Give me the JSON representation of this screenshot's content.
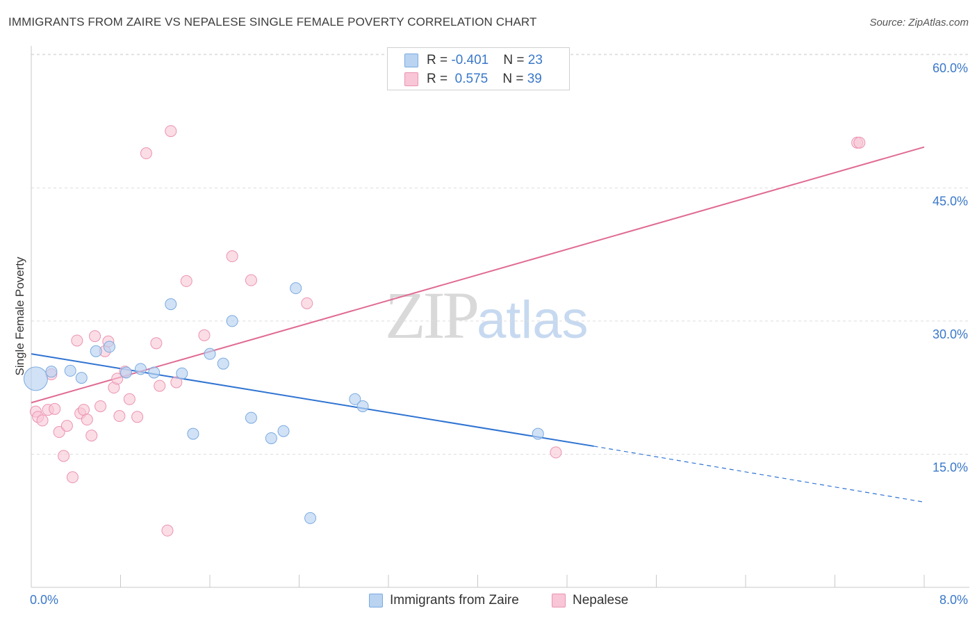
{
  "title": "IMMIGRANTS FROM ZAIRE VS NEPALESE SINGLE FEMALE POVERTY CORRELATION CHART",
  "source": "Source: ZipAtlas.com",
  "watermark": {
    "zip": "ZIP",
    "atlas": "atlas"
  },
  "legend": {
    "rows": [
      {
        "r_label": "R = ",
        "r_value": "-0.401",
        "n_label": "N = ",
        "n_value": "23"
      },
      {
        "r_label": "R = ",
        "r_value": " 0.575",
        "n_label": "N = ",
        "n_value": "39"
      }
    ]
  },
  "colors": {
    "blue_fill": "#b9d3f1",
    "blue_stroke": "#7aaae0",
    "blue_line": "#2f73d2",
    "pink_fill": "#f8c6d6",
    "pink_stroke": "#eb93b0",
    "pink_line": "#e06a92",
    "tick_text": "#3a78c9",
    "grid": "#dddddd"
  },
  "chart_data": {
    "type": "scatter",
    "title": "IMMIGRANTS FROM ZAIRE VS NEPALESE SINGLE FEMALE POVERTY CORRELATION CHART",
    "xlabel": "",
    "ylabel": "Single Female Poverty",
    "xlim": [
      0,
      8
    ],
    "ylim": [
      0,
      61
    ],
    "x_tick_labels": [
      "0.0%",
      "8.0%"
    ],
    "y_ticks": [
      15,
      30,
      45,
      60
    ],
    "y_tick_labels": [
      "15.0%",
      "30.0%",
      "45.0%",
      "60.0%"
    ],
    "grid": "horizontal dashed",
    "legend_position": "bottom-center",
    "series": [
      {
        "name": "Immigrants from Zaire",
        "color": "#b9d3f1",
        "points": [
          [
            0.04,
            23.5
          ],
          [
            0.35,
            24.4
          ],
          [
            0.45,
            23.6
          ],
          [
            0.58,
            26.6
          ],
          [
            0.7,
            27.1
          ],
          [
            0.85,
            24.2
          ],
          [
            0.98,
            24.6
          ],
          [
            1.1,
            24.2
          ],
          [
            1.25,
            31.9
          ],
          [
            1.35,
            24.1
          ],
          [
            1.45,
            17.3
          ],
          [
            1.6,
            26.3
          ],
          [
            1.8,
            30.0
          ],
          [
            1.72,
            25.2
          ],
          [
            1.97,
            19.1
          ],
          [
            2.15,
            16.8
          ],
          [
            2.26,
            17.6
          ],
          [
            2.37,
            33.7
          ],
          [
            2.5,
            7.8
          ],
          [
            2.9,
            21.2
          ],
          [
            2.97,
            20.4
          ],
          [
            4.54,
            17.3
          ],
          [
            0.18,
            24.3
          ]
        ],
        "trend": {
          "x0": 0,
          "y0": 26.3,
          "x1": 5.04,
          "y1": 15.9,
          "dashed_to_x": 8.0,
          "dashed_to_y": 9.6
        }
      },
      {
        "name": "Nepalese",
        "color": "#f8c6d6",
        "points": [
          [
            0.04,
            19.8
          ],
          [
            0.06,
            19.2
          ],
          [
            0.1,
            18.8
          ],
          [
            0.15,
            20.0
          ],
          [
            0.18,
            24.0
          ],
          [
            0.21,
            20.1
          ],
          [
            0.25,
            17.5
          ],
          [
            0.29,
            14.8
          ],
          [
            0.32,
            18.2
          ],
          [
            0.37,
            12.4
          ],
          [
            0.41,
            27.8
          ],
          [
            0.44,
            19.6
          ],
          [
            0.47,
            20.0
          ],
          [
            0.5,
            18.9
          ],
          [
            0.54,
            17.1
          ],
          [
            0.57,
            28.3
          ],
          [
            0.62,
            20.4
          ],
          [
            0.66,
            26.6
          ],
          [
            0.69,
            27.7
          ],
          [
            0.74,
            22.5
          ],
          [
            0.77,
            23.5
          ],
          [
            0.79,
            19.3
          ],
          [
            0.84,
            24.3
          ],
          [
            0.88,
            21.2
          ],
          [
            0.95,
            19.2
          ],
          [
            1.03,
            48.9
          ],
          [
            1.12,
            27.5
          ],
          [
            1.15,
            22.7
          ],
          [
            1.22,
            6.4
          ],
          [
            1.25,
            51.4
          ],
          [
            1.3,
            23.1
          ],
          [
            1.39,
            34.5
          ],
          [
            1.55,
            28.4
          ],
          [
            1.8,
            37.3
          ],
          [
            1.97,
            34.6
          ],
          [
            2.47,
            32.0
          ],
          [
            4.7,
            15.2
          ],
          [
            7.4,
            50.1
          ],
          [
            7.42,
            50.1
          ]
        ],
        "trend": {
          "x0": 0,
          "y0": 20.8,
          "x1": 8.0,
          "y1": 49.6
        }
      }
    ]
  }
}
